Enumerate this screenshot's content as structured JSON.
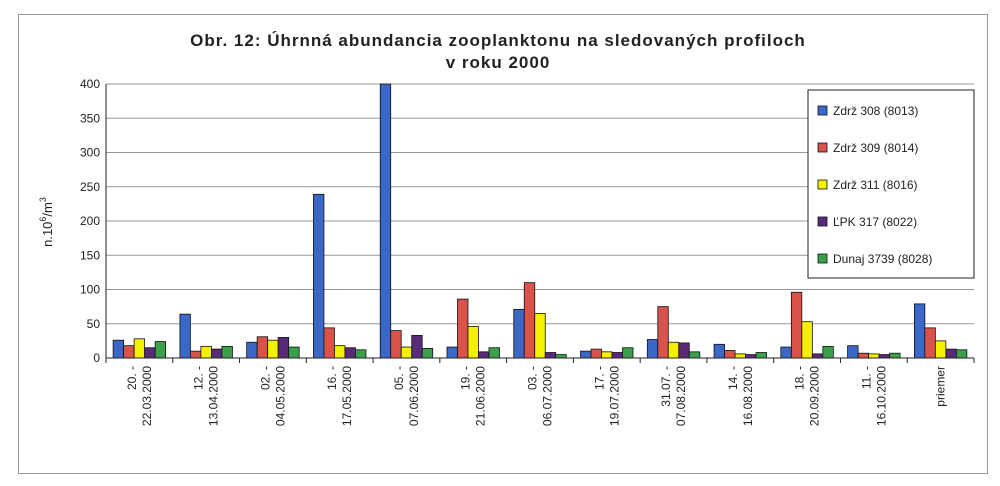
{
  "chart_data": {
    "type": "bar",
    "title_line1": "Obr. 12:  Úhrnná abundancia zooplanktonu na sledovaných profiloch",
    "title_line2": "v roku 2000",
    "ylabel_base": "n.10",
    "ylabel_exp": "6",
    "ylabel_unit": "/m",
    "ylabel_unit_exp": "3",
    "ylim": [
      0,
      400
    ],
    "yticks": [
      0,
      50,
      100,
      150,
      200,
      250,
      300,
      350,
      400
    ],
    "grid": true,
    "legend_position": "right",
    "categories": [
      [
        "20. -",
        "22.03.2000"
      ],
      [
        "12. -",
        "13.04.2000"
      ],
      [
        "02. -",
        "04.05.2000"
      ],
      [
        "16. -",
        "17.05.2000"
      ],
      [
        "05. -",
        "07.06.2000"
      ],
      [
        "19. -",
        "21.06.2000"
      ],
      [
        "03. -",
        "06.07.2000"
      ],
      [
        "17. -",
        "19.07.2000"
      ],
      [
        "31.07. -",
        "07.08.2000"
      ],
      [
        "14. -",
        "16.08.2000"
      ],
      [
        "18. -",
        "20.09.2000"
      ],
      [
        "11. -",
        "16.10.2000"
      ],
      [
        "priemer"
      ]
    ],
    "series": [
      {
        "name": "Zdrž 308 (8013)",
        "color": "#3a67c8",
        "values": [
          26,
          64,
          23,
          239,
          402,
          16,
          71,
          10,
          27,
          20,
          16,
          18,
          79
        ]
      },
      {
        "name": "Zdrž 309 (8014)",
        "color": "#d9534a",
        "values": [
          18,
          10,
          31,
          44,
          40,
          86,
          110,
          13,
          75,
          11,
          96,
          7,
          44
        ]
      },
      {
        "name": "Zdrž 311 (8016)",
        "color": "#f3f000",
        "values": [
          28,
          17,
          26,
          18,
          16,
          46,
          65,
          9,
          23,
          6,
          53,
          6,
          25
        ]
      },
      {
        "name": "ĽPK 317 (8022)",
        "color": "#5a2a7a",
        "values": [
          15,
          13,
          30,
          15,
          33,
          9,
          8,
          8,
          22,
          5,
          6,
          5,
          13
        ]
      },
      {
        "name": "Dunaj 3739 (8028)",
        "color": "#3aa04a",
        "values": [
          24,
          17,
          16,
          12,
          14,
          15,
          5,
          15,
          9,
          8,
          17,
          7,
          12
        ]
      }
    ]
  }
}
